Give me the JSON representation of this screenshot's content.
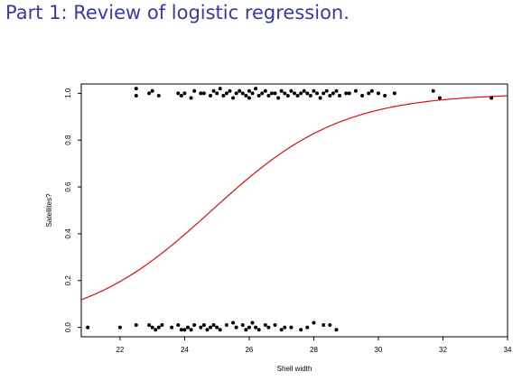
{
  "slide": {
    "title": "Part 1: Review of logistic regression."
  },
  "chart_data": {
    "type": "scatter",
    "xlabel": "Shell width",
    "ylabel": "Satellites?",
    "xlim": [
      20.8,
      34
    ],
    "ylim": [
      -0.04,
      1.04
    ],
    "x_ticks": [
      "22",
      "24",
      "26",
      "28",
      "30",
      "32",
      "34"
    ],
    "y_ticks": [
      "0.0",
      "0.2",
      "0.4",
      "0.6",
      "0.8",
      "1.0"
    ],
    "grid": false,
    "colors": {
      "points": "#000000",
      "curve": "#e01010",
      "title": "#3a3aa6"
    },
    "series": [
      {
        "type": "scatter",
        "x": [
          21.0,
          22.0,
          22.5,
          22.9,
          23.0,
          23.1,
          23.2,
          23.3,
          23.6,
          23.8,
          23.9,
          24.0,
          24.1,
          24.2,
          24.3,
          24.5,
          24.6,
          24.7,
          24.8,
          24.9,
          25.0,
          25.1,
          25.3,
          25.5,
          25.6,
          25.8,
          25.9,
          26.0,
          26.1,
          26.2,
          26.3,
          26.5,
          26.6,
          26.8,
          27.0,
          27.1,
          27.3,
          27.6,
          27.8,
          28.0,
          28.3,
          28.5,
          28.7
        ],
        "y": [
          0.0,
          0.0,
          0.01,
          0.01,
          0.0,
          -0.01,
          0.0,
          0.01,
          0.0,
          0.01,
          -0.01,
          -0.01,
          0.0,
          -0.01,
          0.01,
          0.0,
          0.01,
          -0.01,
          0.0,
          0.01,
          0.0,
          -0.01,
          0.01,
          0.02,
          0.0,
          0.01,
          -0.01,
          0.0,
          0.02,
          0.0,
          -0.01,
          0.01,
          0.0,
          0.01,
          -0.01,
          0.0,
          0.0,
          -0.01,
          0.0,
          0.02,
          0.01,
          0.01,
          -0.01
        ]
      },
      {
        "type": "scatter",
        "x": [
          22.5,
          22.5,
          22.9,
          23.0,
          23.2,
          23.8,
          23.9,
          24.0,
          24.2,
          24.3,
          24.5,
          24.6,
          24.8,
          24.9,
          25.0,
          25.1,
          25.2,
          25.3,
          25.4,
          25.5,
          25.6,
          25.7,
          25.8,
          25.9,
          26.0,
          26.0,
          26.1,
          26.2,
          26.3,
          26.4,
          26.5,
          26.6,
          26.7,
          26.8,
          26.9,
          27.0,
          27.1,
          27.2,
          27.3,
          27.4,
          27.5,
          27.6,
          27.7,
          27.8,
          27.9,
          28.0,
          28.1,
          28.2,
          28.3,
          28.4,
          28.5,
          28.6,
          28.7,
          28.8,
          29.0,
          29.1,
          29.3,
          29.5,
          29.7,
          29.8,
          30.0,
          30.2,
          30.5,
          31.7,
          31.9,
          33.5
        ],
        "y": [
          1.02,
          0.99,
          1.0,
          1.01,
          0.99,
          1.0,
          0.99,
          1.0,
          0.98,
          1.01,
          1.0,
          1.0,
          0.99,
          1.01,
          1.0,
          1.02,
          0.99,
          1.0,
          1.01,
          0.98,
          1.0,
          1.01,
          1.0,
          0.99,
          1.01,
          0.98,
          1.0,
          1.02,
          0.99,
          1.0,
          1.01,
          0.99,
          1.0,
          1.0,
          0.98,
          1.01,
          1.0,
          0.99,
          1.01,
          1.0,
          0.99,
          1.0,
          1.01,
          1.0,
          0.99,
          1.01,
          1.0,
          0.98,
          1.0,
          1.01,
          0.99,
          1.0,
          1.01,
          0.99,
          1.0,
          1.0,
          1.01,
          0.99,
          1.0,
          1.01,
          1.0,
          0.99,
          1.0,
          1.01,
          0.98,
          0.98
        ]
      },
      {
        "type": "line",
        "curve": {
          "family": "logistic",
          "intercept": -12.35,
          "slope": 0.4972
        }
      }
    ]
  }
}
